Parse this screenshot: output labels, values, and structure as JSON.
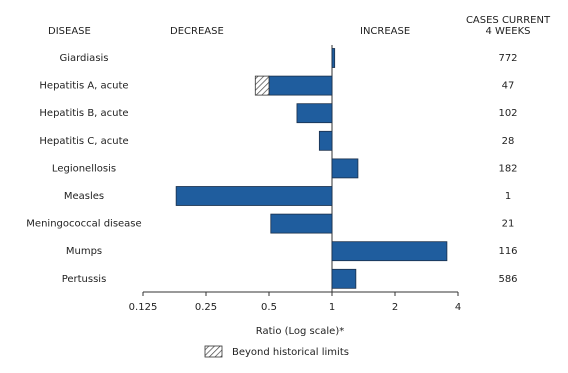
{
  "chart_data": {
    "type": "bar",
    "orientation": "horizontal",
    "xscale": "log",
    "headers": {
      "disease": "DISEASE",
      "decrease": "DECREASE",
      "increase": "INCREASE",
      "cases": [
        "CASES CURRENT",
        "4 WEEKS"
      ]
    },
    "categories": [
      "Giardiasis",
      "Hepatitis A, acute",
      "Hepatitis B, acute",
      "Hepatitis C, acute",
      "Legionellosis",
      "Measles",
      "Meningococcal disease",
      "Mumps",
      "Pertussis"
    ],
    "series": [
      {
        "name": "Ratio",
        "color": "#1f5d9e",
        "values": [
          1.03,
          0.43,
          0.68,
          0.87,
          1.33,
          0.18,
          0.51,
          3.54,
          1.3
        ]
      }
    ],
    "limits": [
      null,
      0.5,
      null,
      null,
      null,
      null,
      null,
      null,
      null
    ],
    "cases": [
      772,
      47,
      102,
      28,
      182,
      1,
      21,
      116,
      586
    ],
    "xlim": [
      0.125,
      4
    ],
    "xticks": [
      0.125,
      0.25,
      0.5,
      1,
      2,
      4
    ],
    "baseline": 1,
    "xlabel": "Ratio (Log scale)*",
    "legend": "Beyond historical limits"
  }
}
